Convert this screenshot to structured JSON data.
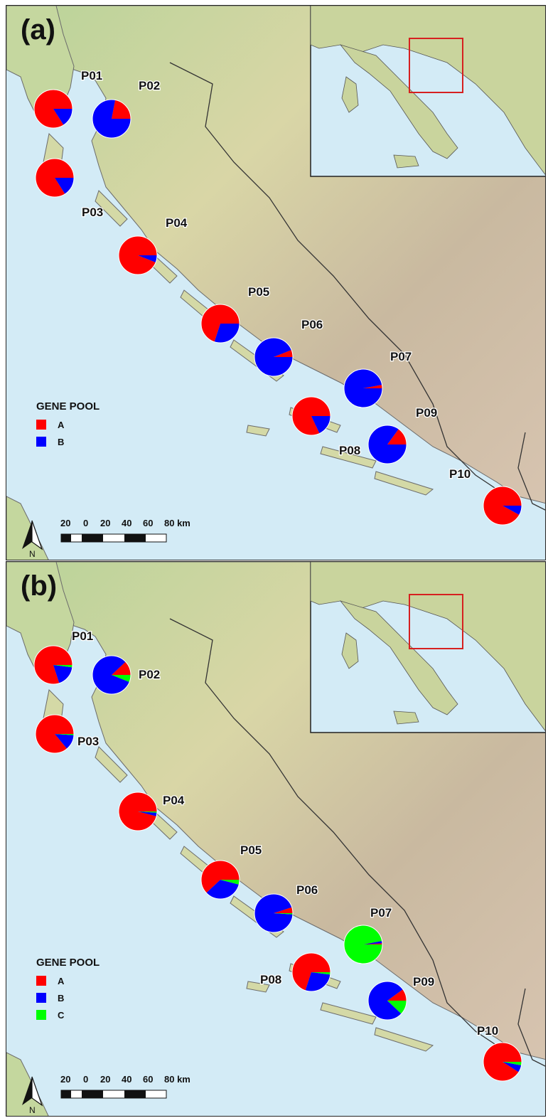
{
  "colors": {
    "A": "#ff0000",
    "B": "#0000ff",
    "C": "#00ff00",
    "sea": "#d3ebf6",
    "land": "#cfd3a2",
    "inset_frame": "#d62020"
  },
  "scalebar": {
    "ticks": [
      "20",
      "0",
      "20",
      "40",
      "60",
      "80 km"
    ]
  },
  "north_label": "N",
  "panels": [
    {
      "tag": "(a)",
      "legend": {
        "title": "GENE POOL",
        "items": [
          {
            "key": "A",
            "label": "A"
          },
          {
            "key": "B",
            "label": "B"
          }
        ]
      },
      "populations": [
        {
          "id": "P01",
          "fractions": {
            "A": 0.84,
            "B": 0.16
          }
        },
        {
          "id": "P02",
          "fractions": {
            "A": 0.22,
            "B": 0.78
          }
        },
        {
          "id": "P03",
          "fractions": {
            "A": 0.84,
            "B": 0.16
          }
        },
        {
          "id": "P04",
          "fractions": {
            "A": 0.94,
            "B": 0.06
          }
        },
        {
          "id": "P05",
          "fractions": {
            "A": 0.7,
            "B": 0.3
          }
        },
        {
          "id": "P06",
          "fractions": {
            "A": 0.06,
            "B": 0.94
          }
        },
        {
          "id": "P07",
          "fractions": {
            "A": 0.03,
            "B": 0.97
          }
        },
        {
          "id": "P08",
          "fractions": {
            "A": 0.82,
            "B": 0.18
          }
        },
        {
          "id": "P09",
          "fractions": {
            "A": 0.15,
            "B": 0.85
          }
        },
        {
          "id": "P10",
          "fractions": {
            "A": 0.92,
            "B": 0.08
          }
        }
      ]
    },
    {
      "tag": "(b)",
      "legend": {
        "title": "GENE POOL",
        "items": [
          {
            "key": "A",
            "label": "A"
          },
          {
            "key": "B",
            "label": "B"
          },
          {
            "key": "C",
            "label": "C"
          }
        ]
      },
      "populations": [
        {
          "id": "P01",
          "fractions": {
            "A": 0.8,
            "B": 0.18,
            "C": 0.02
          }
        },
        {
          "id": "P02",
          "fractions": {
            "A": 0.12,
            "B": 0.82,
            "C": 0.06
          }
        },
        {
          "id": "P03",
          "fractions": {
            "A": 0.86,
            "B": 0.13,
            "C": 0.01
          }
        },
        {
          "id": "P04",
          "fractions": {
            "A": 0.96,
            "B": 0.03,
            "C": 0.01
          }
        },
        {
          "id": "P05",
          "fractions": {
            "A": 0.62,
            "B": 0.34,
            "C": 0.04
          }
        },
        {
          "id": "P06",
          "fractions": {
            "A": 0.05,
            "B": 0.94,
            "C": 0.01
          }
        },
        {
          "id": "P07",
          "fractions": {
            "A": 0.01,
            "B": 0.02,
            "C": 0.97
          }
        },
        {
          "id": "P08",
          "fractions": {
            "A": 0.7,
            "B": 0.28,
            "C": 0.02
          }
        },
        {
          "id": "P09",
          "fractions": {
            "A": 0.1,
            "B": 0.78,
            "C": 0.12
          }
        },
        {
          "id": "P10",
          "fractions": {
            "A": 0.91,
            "B": 0.06,
            "C": 0.03
          }
        }
      ]
    }
  ]
}
